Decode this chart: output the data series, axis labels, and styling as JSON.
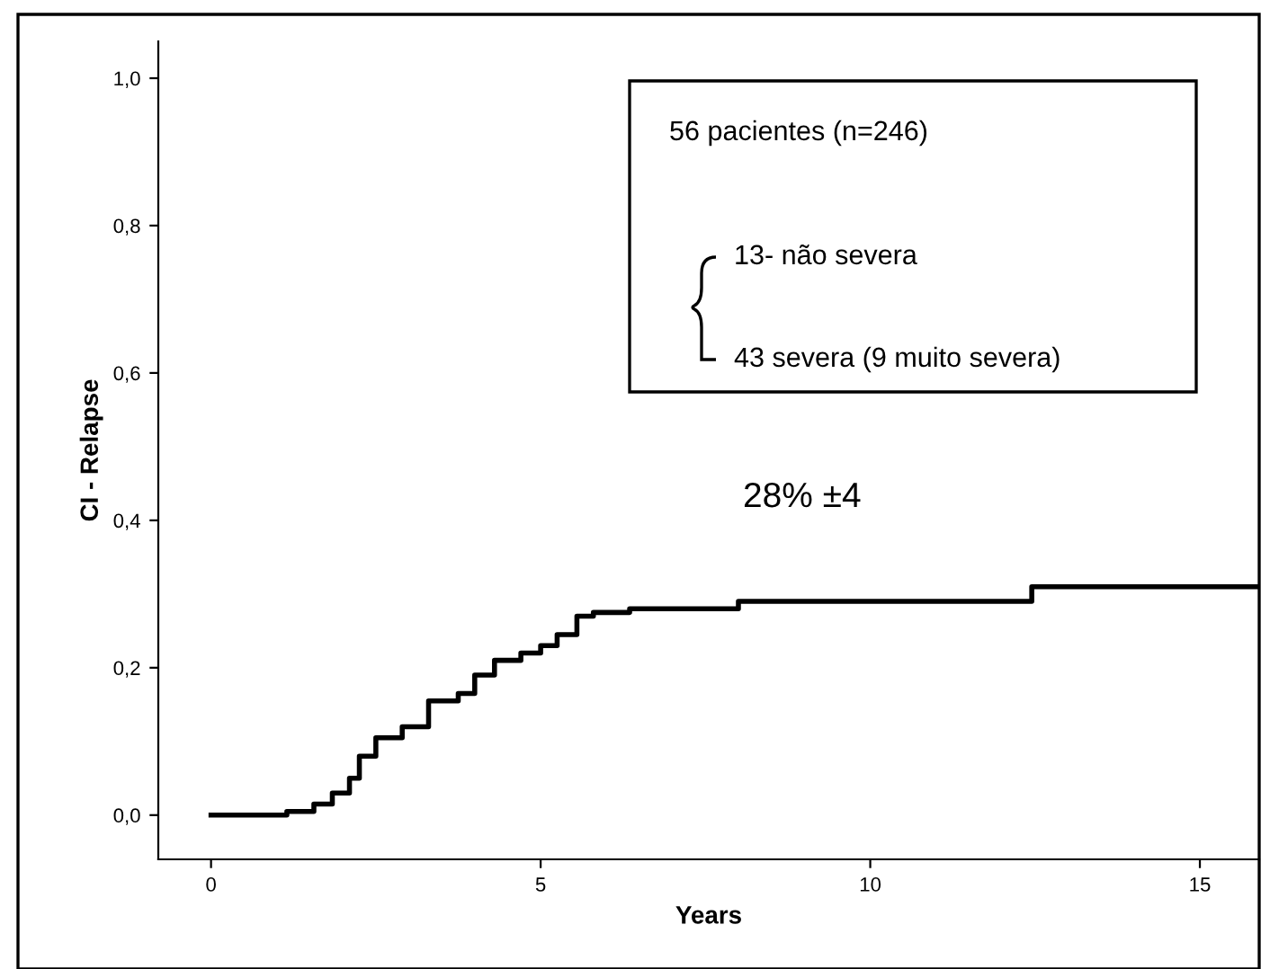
{
  "chart_data": {
    "type": "step",
    "xlabel": "Years",
    "ylabel": "CI - Relapse",
    "x": [
      0,
      1.15,
      1.56,
      1.84,
      2.1,
      2.25,
      2.5,
      2.9,
      3.3,
      3.75,
      4.0,
      4.3,
      4.7,
      5.0,
      5.25,
      5.55,
      5.8,
      6.35,
      8.0,
      12.45,
      15.9
    ],
    "series": [
      {
        "color": "#000000",
        "values": [
          0,
          0.005,
          0.015,
          0.03,
          0.05,
          0.08,
          0.105,
          0.12,
          0.155,
          0.165,
          0.19,
          0.21,
          0.22,
          0.23,
          0.245,
          0.27,
          0.275,
          0.28,
          0.29,
          0.31,
          0.31
        ]
      }
    ],
    "xlim": [
      -0.8,
      15.9
    ],
    "ylim": [
      -0.06,
      1.05
    ],
    "xticks": [
      0,
      5,
      10,
      15
    ],
    "yticks": [
      {
        "value": 0,
        "label": "0,0"
      },
      {
        "value": 0.2,
        "label": "0,2"
      },
      {
        "value": 0.4,
        "label": "0,4"
      },
      {
        "value": 0.6,
        "label": "0,6"
      },
      {
        "value": 0.8,
        "label": "0,8"
      },
      {
        "value": 1.0,
        "label": "1,0"
      }
    ],
    "grid": false,
    "legend": false,
    "line_style": "solid",
    "annotations": [
      "56 pacientes (n=246)",
      "13- não severa",
      "43 severa (9 muito severa)",
      "28% ±4"
    ]
  }
}
